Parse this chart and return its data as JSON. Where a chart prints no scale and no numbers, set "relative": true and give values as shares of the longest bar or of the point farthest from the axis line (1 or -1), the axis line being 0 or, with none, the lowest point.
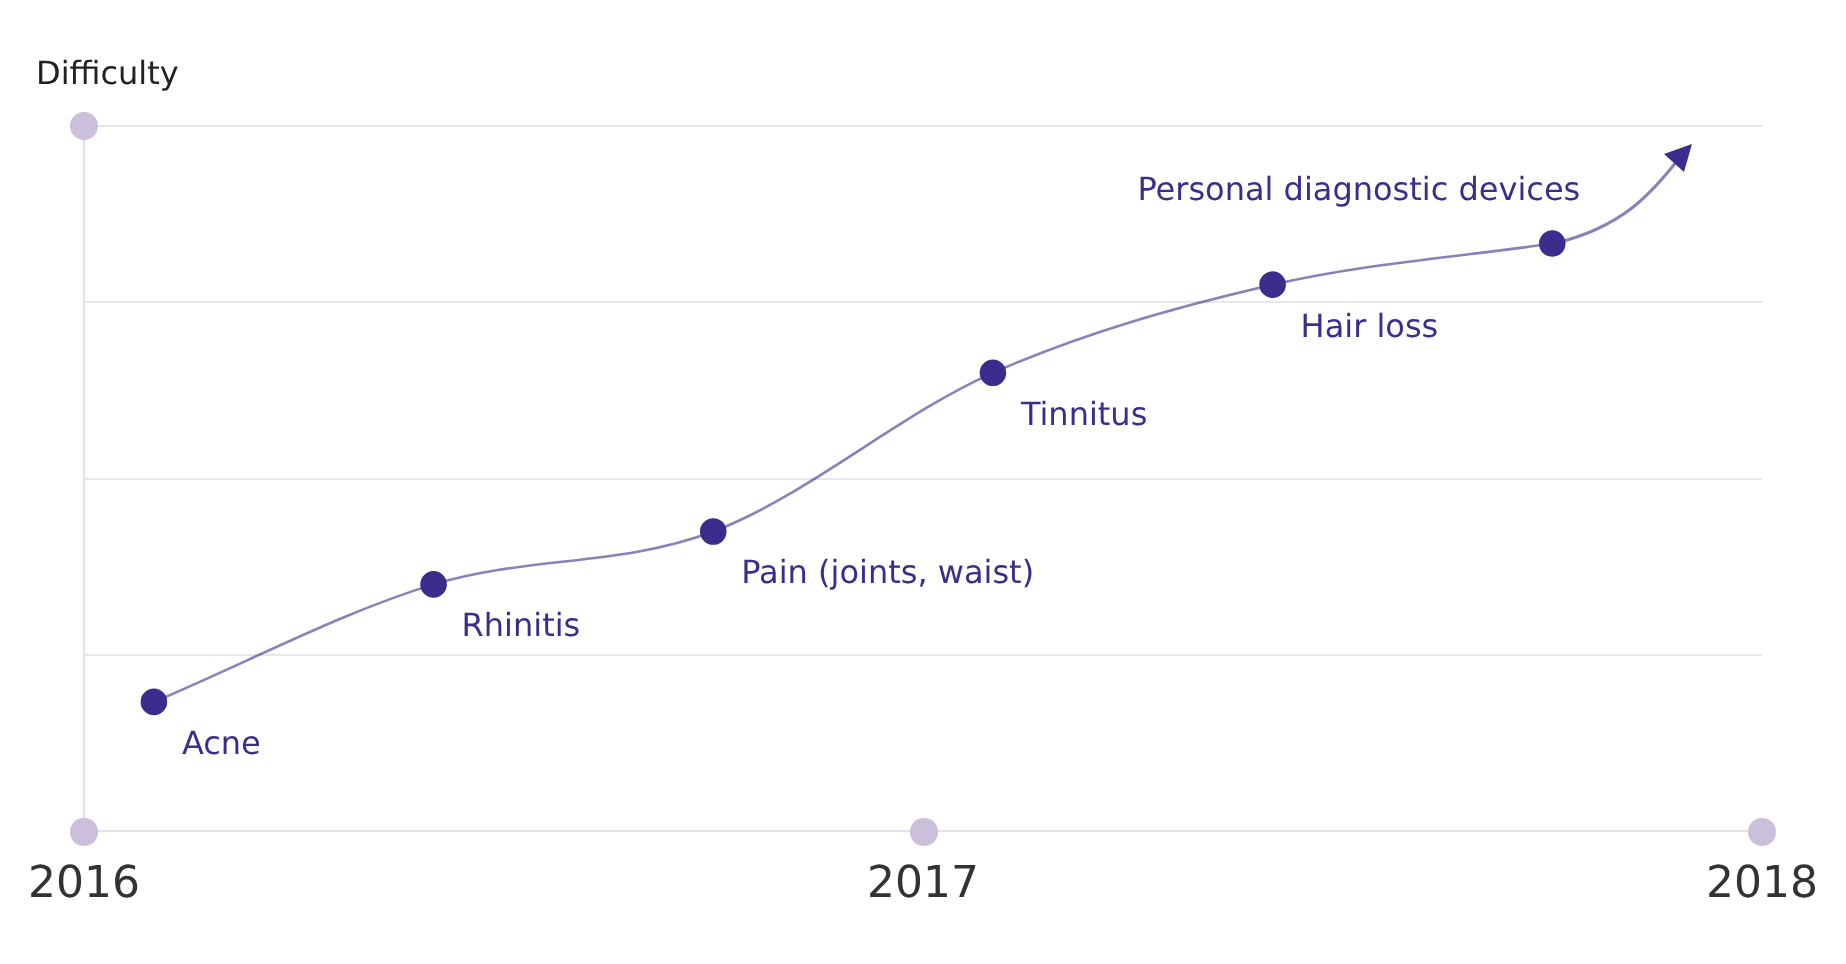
{
  "chart_data": {
    "type": "line",
    "ylabel": "Difficulty",
    "relative": true,
    "x": [
      "2016-02",
      "2016-06",
      "2016-10",
      "2017-02",
      "2017-06",
      "2017-10"
    ],
    "series": [
      {
        "color": "#3b2d8c",
        "values": [
          0.22,
          0.42,
          0.51,
          0.78,
          0.93,
          1
        ]
      }
    ],
    "xlim": [
      "2016",
      "2018"
    ],
    "xticks": [
      {
        "value": "2016",
        "label": "2016"
      },
      {
        "value": "2017",
        "label": "2017"
      },
      {
        "value": "2018",
        "label": "2018"
      }
    ],
    "grid": "y",
    "marker": "circle",
    "line_style": "solid",
    "legend": false,
    "annotations": [
      {
        "text": "Acne",
        "x": "2016-02",
        "y": 0.22
      },
      {
        "text": "Rhinitis",
        "x": "2016-06",
        "y": 0.42
      },
      {
        "text": "Pain (joints, waist)",
        "x": "2016-10",
        "y": 0.51
      },
      {
        "text": "Tinnitus",
        "x": "2017-02",
        "y": 0.78
      },
      {
        "text": "Hair loss",
        "x": "2017-06",
        "y": 0.93
      },
      {
        "text": "Personal diagnostic devices",
        "x": "2017-10",
        "y": 1
      }
    ]
  }
}
